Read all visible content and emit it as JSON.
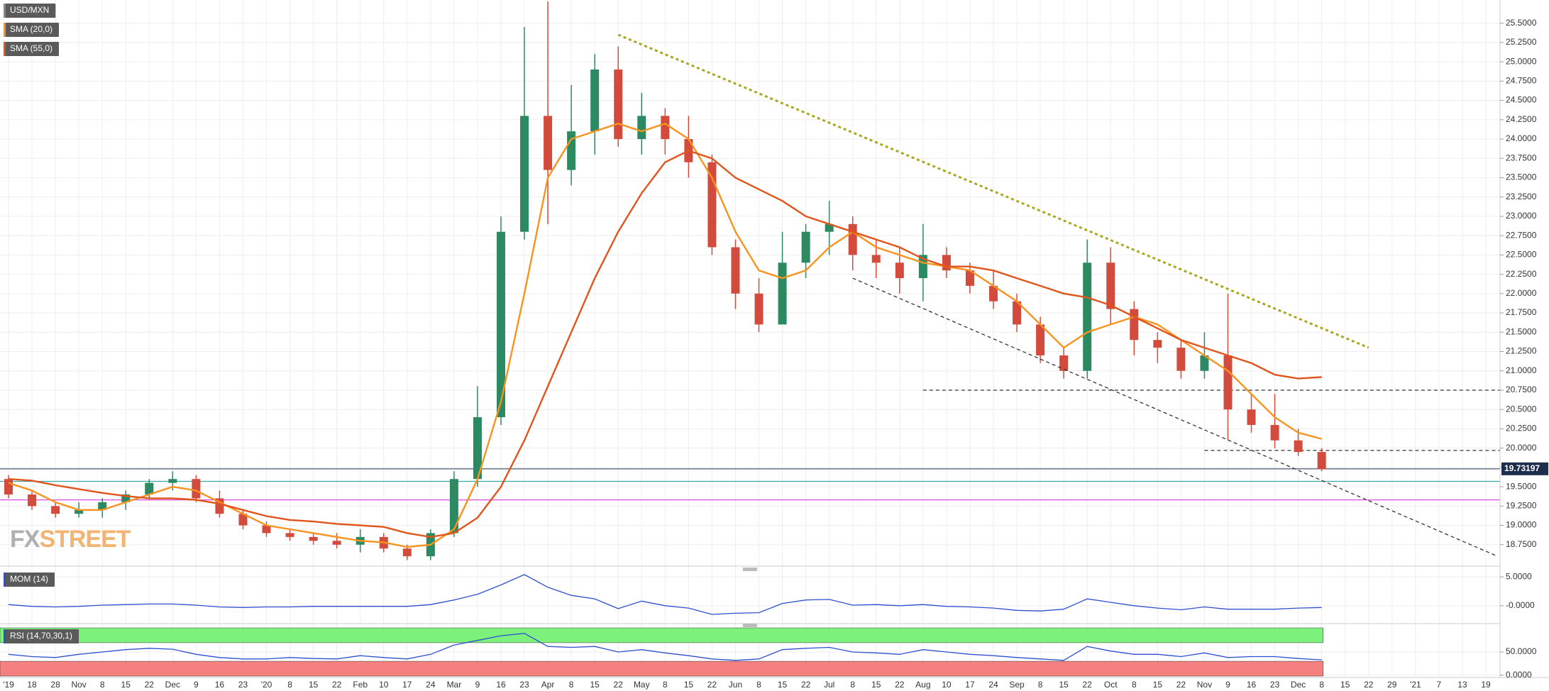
{
  "chart_data": [
    {
      "type": "candlestick",
      "title": "USD/MXN",
      "categories": [
        "'19",
        "18",
        "28",
        "Nov",
        "8",
        "15",
        "22",
        "Dec",
        "9",
        "16",
        "23",
        "'20",
        "8",
        "15",
        "22",
        "Feb",
        "10",
        "17",
        "24",
        "Mar",
        "9",
        "16",
        "23",
        "Apr",
        "8",
        "15",
        "22",
        "May",
        "8",
        "15",
        "22",
        "Jun",
        "8",
        "15",
        "22",
        "Jul",
        "8",
        "15",
        "22",
        "Aug",
        "10",
        "17",
        "24",
        "Sep",
        "8",
        "15",
        "22",
        "Oct",
        "8",
        "15",
        "22",
        "Nov",
        "9",
        "16",
        "23",
        "Dec",
        "8",
        "15",
        "22",
        "29",
        "'21",
        "7",
        "13",
        "19"
      ],
      "open": [
        19.6,
        19.4,
        19.25,
        19.15,
        19.2,
        19.3,
        19.4,
        19.55,
        19.6,
        19.35,
        19.15,
        19.0,
        18.9,
        18.85,
        18.8,
        18.75,
        18.85,
        18.7,
        18.6,
        18.9,
        19.6,
        20.4,
        22.8,
        24.3,
        23.6,
        24.1,
        24.9,
        24.0,
        24.3,
        24.0,
        23.7,
        22.6,
        22.0,
        21.6,
        22.4,
        22.8,
        22.9,
        22.5,
        22.4,
        22.2,
        22.5,
        22.3,
        22.1,
        21.9,
        21.6,
        21.2,
        21.0,
        22.4,
        21.8,
        21.4,
        21.3,
        21.0,
        21.2,
        20.5,
        20.3,
        20.1,
        19.95,
        null,
        null,
        null,
        null,
        null,
        null,
        null
      ],
      "high": [
        19.65,
        19.45,
        19.3,
        19.3,
        19.35,
        19.45,
        19.6,
        19.7,
        19.65,
        19.45,
        19.2,
        19.05,
        18.95,
        18.9,
        18.9,
        18.95,
        18.9,
        18.75,
        18.95,
        19.7,
        20.8,
        23.0,
        25.45,
        25.78,
        24.7,
        25.1,
        25.2,
        24.6,
        24.4,
        24.3,
        23.8,
        22.7,
        22.2,
        22.8,
        22.9,
        23.2,
        23.0,
        22.7,
        22.6,
        22.9,
        22.6,
        22.4,
        22.3,
        22.0,
        21.7,
        21.3,
        22.7,
        22.6,
        21.9,
        21.5,
        21.4,
        21.5,
        22.0,
        20.7,
        20.7,
        20.25,
        20.0,
        null,
        null,
        null,
        null,
        null,
        null,
        null
      ],
      "low": [
        19.35,
        19.2,
        19.1,
        19.1,
        19.1,
        19.2,
        19.35,
        19.45,
        19.3,
        19.1,
        18.95,
        18.85,
        18.8,
        18.75,
        18.7,
        18.65,
        18.65,
        18.55,
        18.55,
        18.85,
        19.5,
        20.3,
        22.7,
        22.9,
        23.4,
        23.8,
        23.9,
        23.8,
        23.8,
        23.5,
        22.5,
        21.8,
        21.5,
        21.6,
        22.2,
        22.5,
        22.3,
        22.2,
        22.0,
        21.9,
        22.2,
        22.0,
        21.8,
        21.5,
        21.1,
        20.9,
        20.9,
        21.6,
        21.2,
        21.1,
        20.9,
        20.9,
        20.1,
        20.2,
        20.0,
        19.9,
        19.7,
        null,
        null,
        null,
        null,
        null,
        null,
        null
      ],
      "close": [
        19.4,
        19.25,
        19.15,
        19.2,
        19.3,
        19.4,
        19.55,
        19.6,
        19.35,
        19.15,
        19.0,
        18.9,
        18.85,
        18.8,
        18.75,
        18.85,
        18.7,
        18.6,
        18.9,
        19.6,
        20.4,
        22.8,
        24.3,
        23.6,
        24.1,
        24.9,
        24.0,
        24.3,
        24.0,
        23.7,
        22.6,
        22.0,
        21.6,
        22.4,
        22.8,
        22.9,
        22.5,
        22.4,
        22.2,
        22.5,
        22.3,
        22.1,
        21.9,
        21.6,
        21.2,
        21.0,
        22.4,
        21.8,
        21.4,
        21.3,
        21.0,
        21.2,
        20.5,
        20.3,
        20.1,
        19.95,
        19.73,
        null,
        null,
        null,
        null,
        null,
        null,
        null
      ],
      "up_color": "#2b8a62",
      "down_color": "#d24b3c",
      "ylim": [
        18.5,
        25.8
      ],
      "yticks": [
        {
          "value": 18.75,
          "label": "18.7500"
        },
        {
          "value": 19,
          "label": "19.0000"
        },
        {
          "value": 19.25,
          "label": "19.2500"
        },
        {
          "value": 19.5,
          "label": "19.5000"
        },
        {
          "value": 19.75,
          "label": "19.7500"
        },
        {
          "value": 20,
          "label": "20.0000"
        },
        {
          "value": 20.25,
          "label": "20.2500"
        },
        {
          "value": 20.5,
          "label": "20.5000"
        },
        {
          "value": 20.75,
          "label": "20.7500"
        },
        {
          "value": 21,
          "label": "21.0000"
        },
        {
          "value": 21.25,
          "label": "21.2500"
        },
        {
          "value": 21.5,
          "label": "21.5000"
        },
        {
          "value": 21.75,
          "label": "21.7500"
        },
        {
          "value": 22,
          "label": "22.0000"
        },
        {
          "value": 22.25,
          "label": "22.2500"
        },
        {
          "value": 22.5,
          "label": "22.5000"
        },
        {
          "value": 22.75,
          "label": "22.7500"
        },
        {
          "value": 23,
          "label": "23.0000"
        },
        {
          "value": 23.25,
          "label": "23.2500"
        },
        {
          "value": 23.5,
          "label": "23.5000"
        },
        {
          "value": 23.75,
          "label": "23.7500"
        },
        {
          "value": 24,
          "label": "24.0000"
        },
        {
          "value": 24.25,
          "label": "24.2500"
        },
        {
          "value": 24.5,
          "label": "24.5000"
        },
        {
          "value": 24.75,
          "label": "24.7500"
        },
        {
          "value": 25,
          "label": "25.0000"
        },
        {
          "value": 25.25,
          "label": "25.2500"
        },
        {
          "value": 25.5,
          "label": "25.5000"
        }
      ],
      "grid": true,
      "last_price": {
        "value": 19.73197,
        "label": "19.73197",
        "color": "#1f2d4d"
      },
      "series": [
        {
          "name": "SMA (20,0)",
          "color": "#f7931e",
          "values": [
            19.55,
            19.45,
            19.3,
            19.2,
            19.2,
            19.3,
            19.4,
            19.5,
            19.45,
            19.3,
            19.15,
            19.0,
            18.95,
            18.9,
            18.85,
            18.8,
            18.78,
            18.72,
            18.75,
            18.95,
            19.6,
            20.6,
            22.0,
            23.5,
            24.0,
            24.1,
            24.2,
            24.1,
            24.2,
            24.0,
            23.5,
            22.8,
            22.3,
            22.2,
            22.3,
            22.6,
            22.8,
            22.6,
            22.5,
            22.4,
            22.35,
            22.3,
            22.1,
            21.9,
            21.6,
            21.3,
            21.5,
            21.6,
            21.7,
            21.6,
            21.4,
            21.2,
            21.0,
            20.7,
            20.4,
            20.2,
            20.12,
            null,
            null,
            null,
            null,
            null,
            null,
            null
          ]
        },
        {
          "name": "SMA (55,0)",
          "color": "#e0551b",
          "values": [
            19.6,
            19.58,
            19.52,
            19.47,
            19.42,
            19.38,
            19.35,
            19.35,
            19.33,
            19.28,
            19.2,
            19.12,
            19.07,
            19.05,
            19.02,
            19.0,
            18.98,
            18.9,
            18.85,
            18.9,
            19.1,
            19.5,
            20.1,
            20.8,
            21.5,
            22.2,
            22.8,
            23.3,
            23.7,
            23.85,
            23.75,
            23.5,
            23.35,
            23.2,
            23.0,
            22.9,
            22.8,
            22.7,
            22.6,
            22.45,
            22.35,
            22.35,
            22.3,
            22.2,
            22.1,
            22.0,
            21.95,
            21.85,
            21.7,
            21.55,
            21.4,
            21.3,
            21.2,
            21.1,
            20.95,
            20.9,
            20.92,
            null,
            null,
            null,
            null,
            null,
            null,
            null
          ]
        }
      ],
      "levels": [
        {
          "value": 19.57,
          "color": "#3aa6a6"
        },
        {
          "value": 19.33,
          "color": "#d94bd9"
        },
        {
          "value": 20.75,
          "color": "#333333",
          "dashed": true,
          "from": 39
        },
        {
          "value": 19.97,
          "color": "#333333",
          "dashed": true,
          "from": 51
        }
      ],
      "trendlines": [
        {
          "x": [
            26,
            58
          ],
          "y": [
            25.35,
            21.3
          ],
          "color": "#a8a81a",
          "dotted": true
        },
        {
          "x": [
            36,
            63.5
          ],
          "y": [
            22.2,
            18.6
          ],
          "color": "#333333",
          "dashed": true
        }
      ],
      "watermark": [
        "FX",
        "STREET"
      ]
    },
    {
      "type": "line",
      "series": [
        {
          "name": "MOM (14)",
          "color": "#2f4fd0",
          "values": [
            0.2,
            -0.1,
            -0.2,
            -0.1,
            0.1,
            0.2,
            0.3,
            0.3,
            0.1,
            -0.2,
            -0.3,
            -0.2,
            -0.2,
            -0.1,
            -0.1,
            -0.1,
            -0.1,
            -0.1,
            0.2,
            1.0,
            2.0,
            3.6,
            5.4,
            3.2,
            1.8,
            1.2,
            -0.5,
            0.8,
            0,
            -0.4,
            -1.5,
            -1.3,
            -1.2,
            0.4,
            1.0,
            1.1,
            0.1,
            0.2,
            0,
            0.2,
            -0.1,
            -0.2,
            -0.4,
            -0.8,
            -0.9,
            -0.6,
            1.2,
            0.6,
            0,
            -0.4,
            -0.7,
            -0.2,
            -0.6,
            -0.6,
            -0.6,
            -0.4,
            -0.3,
            null,
            null,
            null,
            null,
            null,
            null,
            null
          ]
        }
      ],
      "ylim": [
        -2.6,
        6.0
      ],
      "yticks": [
        {
          "value": 5,
          "label": "5.0000"
        },
        {
          "value": 0,
          "label": "-0.0000"
        }
      ]
    },
    {
      "type": "line",
      "series": [
        {
          "name": "RSI (14,70,30,1)",
          "color": "#2f4fd0",
          "values": [
            45,
            40,
            38,
            45,
            50,
            55,
            58,
            56,
            45,
            38,
            35,
            35,
            38,
            36,
            35,
            42,
            38,
            35,
            45,
            65,
            75,
            85,
            90,
            62,
            60,
            62,
            50,
            55,
            48,
            42,
            35,
            32,
            35,
            55,
            58,
            60,
            50,
            48,
            45,
            55,
            50,
            45,
            42,
            38,
            35,
            32,
            62,
            52,
            45,
            45,
            40,
            48,
            38,
            40,
            40,
            36,
            33,
            null,
            null,
            null,
            null,
            null,
            null,
            null
          ]
        }
      ],
      "ylim": [
        -2,
        102
      ],
      "upper_band": 70,
      "lower_band": 30,
      "upper_color": "#7cf27c",
      "lower_color": "#f58080",
      "yticks": [
        {
          "value": 50,
          "label": "50.0000"
        },
        {
          "value": 0,
          "label": "0.0000"
        }
      ]
    }
  ]
}
